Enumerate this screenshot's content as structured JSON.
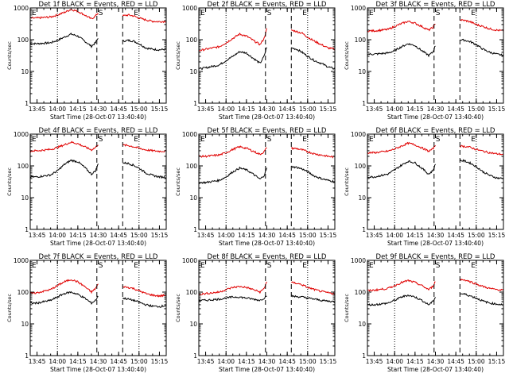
{
  "chart_data": {
    "type": "line",
    "layout": "3x3 grid",
    "yscale": "log",
    "ylim": [
      1,
      1000
    ],
    "ytick_labels": [
      "1",
      "10",
      "100",
      "1000"
    ],
    "ylabel": "Counts/sec",
    "xlabel": "Start Time (28-Oct-07 13:40:40)",
    "xlim": [
      "13:40",
      "15:20"
    ],
    "xtick_labels": [
      "13:45",
      "14:00",
      "14:15",
      "14:30",
      "14:45",
      "15:00",
      "15:15"
    ],
    "markers": {
      "event": "E",
      "start": "S"
    },
    "vertical_lines": {
      "dotted": [
        "14:00",
        "15:00"
      ],
      "dashed": [
        "14:29",
        "14:48"
      ]
    },
    "panels": [
      {
        "title": "Det 1f BLACK = Events, RED = LLD",
        "series": [
          {
            "color": "#000000",
            "x": [
              "13:40",
              "13:45",
              "13:55",
              "14:00",
              "14:05",
              "14:10",
              "14:15",
              "14:20",
              "14:25",
              "14:28",
              "14:30",
              "14:48",
              "14:52",
              "14:56",
              "15:00",
              "15:05",
              "15:10",
              "15:15",
              "15:20"
            ],
            "y": [
              75,
              75,
              80,
              95,
              120,
              150,
              130,
              90,
              62,
              80,
              115,
              90,
              95,
              90,
              75,
              55,
              50,
              48,
              50
            ]
          },
          {
            "color": "#e00000",
            "x": [
              "13:40",
              "13:45",
              "13:55",
              "14:00",
              "14:05",
              "14:10",
              "14:15",
              "14:20",
              "14:25",
              "14:28",
              "14:30",
              "14:48",
              "14:52",
              "14:56",
              "15:00",
              "15:05",
              "15:10",
              "15:15",
              "15:20"
            ],
            "y": [
              480,
              480,
              520,
              600,
              720,
              900,
              780,
              600,
              450,
              560,
              700,
              560,
              600,
              560,
              480,
              420,
              380,
              370,
              380
            ]
          }
        ]
      },
      {
        "title": "Det 2f BLACK = Events, RED = LLD",
        "series": [
          {
            "color": "#000000",
            "x": [
              "13:40",
              "13:45",
              "13:55",
              "14:00",
              "14:05",
              "14:10",
              "14:15",
              "14:20",
              "14:25",
              "14:28",
              "14:30",
              "14:48",
              "14:52",
              "14:56",
              "15:00",
              "15:05",
              "15:10",
              "15:15",
              "15:20"
            ],
            "y": [
              12,
              13,
              16,
              22,
              30,
              42,
              38,
              26,
              18,
              30,
              60,
              55,
              50,
              40,
              30,
              22,
              18,
              14,
              12
            ]
          },
          {
            "color": "#e00000",
            "x": [
              "13:40",
              "13:45",
              "13:55",
              "14:00",
              "14:05",
              "14:10",
              "14:15",
              "14:20",
              "14:25",
              "14:28",
              "14:30",
              "14:48",
              "14:52",
              "14:56",
              "15:00",
              "15:05",
              "15:10",
              "15:15",
              "15:20"
            ],
            "y": [
              45,
              50,
              60,
              80,
              110,
              150,
              130,
              95,
              70,
              110,
              220,
              200,
              180,
              160,
              120,
              90,
              70,
              55,
              50
            ]
          }
        ]
      },
      {
        "title": "Det 3f BLACK = Events, RED = LLD",
        "series": [
          {
            "color": "#000000",
            "x": [
              "13:40",
              "13:45",
              "13:55",
              "14:00",
              "14:05",
              "14:10",
              "14:15",
              "14:20",
              "14:25",
              "14:28",
              "14:30",
              "14:48",
              "14:52",
              "14:56",
              "15:00",
              "15:05",
              "15:10",
              "15:15",
              "15:20"
            ],
            "y": [
              35,
              35,
              38,
              45,
              60,
              75,
              65,
              45,
              32,
              40,
              65,
              100,
              95,
              85,
              70,
              50,
              40,
              35,
              32
            ]
          },
          {
            "color": "#e00000",
            "x": [
              "13:40",
              "13:45",
              "13:55",
              "14:00",
              "14:05",
              "14:10",
              "14:15",
              "14:20",
              "14:25",
              "14:28",
              "14:30",
              "14:48",
              "14:52",
              "14:56",
              "15:00",
              "15:05",
              "15:10",
              "15:15",
              "15:20"
            ],
            "y": [
              190,
              190,
              210,
              260,
              320,
              380,
              330,
              260,
              200,
              240,
              320,
              420,
              400,
              360,
              300,
              260,
              220,
              200,
              190
            ]
          }
        ]
      },
      {
        "title": "Det 4f BLACK = Events, RED = LLD",
        "series": [
          {
            "color": "#000000",
            "x": [
              "13:40",
              "13:45",
              "13:55",
              "14:00",
              "14:05",
              "14:10",
              "14:15",
              "14:20",
              "14:25",
              "14:28",
              "14:30",
              "14:48",
              "14:52",
              "14:56",
              "15:00",
              "15:05",
              "15:10",
              "15:15",
              "15:20"
            ],
            "y": [
              45,
              45,
              52,
              70,
              110,
              150,
              135,
              90,
              55,
              70,
              115,
              125,
              120,
              105,
              85,
              60,
              50,
              45,
              44
            ]
          },
          {
            "color": "#e00000",
            "x": [
              "13:40",
              "13:45",
              "13:55",
              "14:00",
              "14:05",
              "14:10",
              "14:15",
              "14:20",
              "14:25",
              "14:28",
              "14:30",
              "14:48",
              "14:52",
              "14:56",
              "15:00",
              "15:05",
              "15:10",
              "15:15",
              "15:20"
            ],
            "y": [
              300,
              300,
              330,
              380,
              460,
              560,
              500,
              400,
              320,
              380,
              480,
              450,
              440,
              400,
              360,
              320,
              300,
              290,
              290
            ]
          }
        ]
      },
      {
        "title": "Det 5f BLACK = Events, RED = LLD",
        "series": [
          {
            "color": "#000000",
            "x": [
              "13:40",
              "13:45",
              "13:55",
              "14:00",
              "14:05",
              "14:10",
              "14:15",
              "14:20",
              "14:25",
              "14:28",
              "14:30",
              "14:48",
              "14:52",
              "14:56",
              "15:00",
              "15:05",
              "15:10",
              "15:15",
              "15:20"
            ],
            "y": [
              30,
              30,
              35,
              45,
              65,
              85,
              75,
              55,
              38,
              50,
              85,
              95,
              90,
              80,
              65,
              48,
              40,
              35,
              32
            ]
          },
          {
            "color": "#e00000",
            "x": [
              "13:40",
              "13:45",
              "13:55",
              "14:00",
              "14:05",
              "14:10",
              "14:15",
              "14:20",
              "14:25",
              "14:28",
              "14:30",
              "14:48",
              "14:52",
              "14:56",
              "15:00",
              "15:05",
              "15:10",
              "15:15",
              "15:20"
            ],
            "y": [
              200,
              200,
              220,
              260,
              330,
              400,
              360,
              290,
              230,
              280,
              380,
              360,
              350,
              320,
              280,
              240,
              220,
              200,
              190
            ]
          }
        ]
      },
      {
        "title": "Det 6f BLACK = Events, RED = LLD",
        "series": [
          {
            "color": "#000000",
            "x": [
              "13:40",
              "13:45",
              "13:55",
              "14:00",
              "14:05",
              "14:10",
              "14:15",
              "14:20",
              "14:25",
              "14:28",
              "14:30",
              "14:48",
              "14:52",
              "14:56",
              "15:00",
              "15:05",
              "15:10",
              "15:15",
              "15:20"
            ],
            "y": [
              45,
              45,
              55,
              75,
              105,
              140,
              125,
              85,
              55,
              70,
              110,
              150,
              140,
              120,
              95,
              65,
              50,
              42,
              40
            ]
          },
          {
            "color": "#e00000",
            "x": [
              "13:40",
              "13:45",
              "13:55",
              "14:00",
              "14:05",
              "14:10",
              "14:15",
              "14:20",
              "14:25",
              "14:28",
              "14:30",
              "14:48",
              "14:52",
              "14:56",
              "15:00",
              "15:05",
              "15:10",
              "15:15",
              "15:20"
            ],
            "y": [
              260,
              260,
              290,
              340,
              420,
              520,
              460,
              370,
              290,
              340,
              450,
              420,
              410,
              380,
              330,
              290,
              260,
              240,
              230
            ]
          }
        ]
      },
      {
        "title": "Det 7f BLACK = Events, RED = LLD",
        "series": [
          {
            "color": "#000000",
            "x": [
              "13:40",
              "13:45",
              "13:55",
              "14:00",
              "14:05",
              "14:10",
              "14:15",
              "14:20",
              "14:25",
              "14:28",
              "14:30",
              "14:48",
              "14:52",
              "14:56",
              "15:00",
              "15:05",
              "15:10",
              "15:15",
              "15:20"
            ],
            "y": [
              45,
              45,
              55,
              70,
              90,
              100,
              85,
              65,
              45,
              55,
              75,
              65,
              60,
              55,
              48,
              40,
              36,
              35,
              38
            ]
          },
          {
            "color": "#e00000",
            "x": [
              "13:40",
              "13:45",
              "13:55",
              "14:00",
              "14:05",
              "14:10",
              "14:15",
              "14:20",
              "14:25",
              "14:28",
              "14:30",
              "14:48",
              "14:52",
              "14:56",
              "15:00",
              "15:05",
              "15:10",
              "15:15",
              "15:20"
            ],
            "y": [
              90,
              95,
              120,
              160,
              210,
              250,
              210,
              150,
              100,
              130,
              180,
              150,
              140,
              130,
              110,
              90,
              80,
              75,
              80
            ]
          }
        ]
      },
      {
        "title": "Det 8f BLACK = Events, RED = LLD",
        "series": [
          {
            "color": "#000000",
            "x": [
              "13:40",
              "13:45",
              "13:55",
              "14:00",
              "14:05",
              "14:10",
              "14:15",
              "14:20",
              "14:25",
              "14:28",
              "14:30",
              "14:48",
              "14:52",
              "14:56",
              "15:00",
              "15:05",
              "15:10",
              "15:15",
              "15:20"
            ],
            "y": [
              55,
              55,
              60,
              65,
              70,
              70,
              65,
              60,
              55,
              65,
              80,
              75,
              72,
              70,
              65,
              60,
              55,
              52,
              50
            ]
          },
          {
            "color": "#e00000",
            "x": [
              "13:40",
              "13:45",
              "13:55",
              "14:00",
              "14:05",
              "14:10",
              "14:15",
              "14:20",
              "14:25",
              "14:28",
              "14:30",
              "14:48",
              "14:52",
              "14:56",
              "15:00",
              "15:05",
              "15:10",
              "15:15",
              "15:20"
            ],
            "y": [
              85,
              90,
              100,
              120,
              140,
              150,
              140,
              120,
              100,
              130,
              220,
              200,
              190,
              170,
              140,
              120,
              105,
              95,
              90
            ]
          }
        ]
      },
      {
        "title": "Det 9f BLACK = Events, RED = LLD",
        "series": [
          {
            "color": "#000000",
            "x": [
              "13:40",
              "13:45",
              "13:55",
              "14:00",
              "14:05",
              "14:10",
              "14:15",
              "14:20",
              "14:25",
              "14:28",
              "14:30",
              "14:48",
              "14:52",
              "14:56",
              "15:00",
              "15:05",
              "15:10",
              "15:15",
              "15:20"
            ],
            "y": [
              40,
              40,
              45,
              55,
              70,
              80,
              70,
              55,
              40,
              50,
              70,
              90,
              85,
              75,
              65,
              52,
              45,
              42,
              40
            ]
          },
          {
            "color": "#e00000",
            "x": [
              "13:40",
              "13:45",
              "13:55",
              "14:00",
              "14:05",
              "14:10",
              "14:15",
              "14:20",
              "14:25",
              "14:28",
              "14:30",
              "14:48",
              "14:52",
              "14:56",
              "15:00",
              "15:05",
              "15:10",
              "15:15",
              "15:20"
            ],
            "y": [
              110,
              115,
              130,
              160,
              200,
              230,
              200,
              160,
              120,
              150,
              220,
              250,
              240,
              210,
              180,
              150,
              130,
              120,
              115
            ]
          }
        ]
      }
    ]
  }
}
